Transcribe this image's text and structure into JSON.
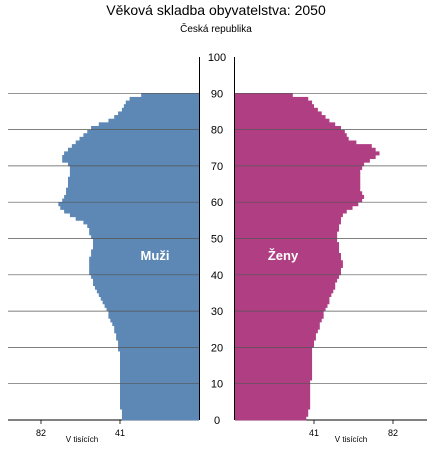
{
  "chart_data": {
    "type": "bar",
    "title": "Věková skladba obyvatelstva: 2050",
    "subtitle": "Česká republika",
    "xlabel": "V tisících",
    "x_ticks": [
      82,
      41
    ],
    "y_ticks": [
      0,
      10,
      20,
      30,
      40,
      50,
      60,
      70,
      80,
      90,
      100
    ],
    "ylim": [
      0,
      100
    ],
    "xlim": [
      0,
      82
    ],
    "colors": {
      "male": "#5d88b5",
      "female": "#b03e83"
    },
    "series": [
      {
        "name": "Muži",
        "ages": [
          0,
          1,
          2,
          3,
          4,
          5,
          6,
          7,
          8,
          9,
          10,
          11,
          12,
          13,
          14,
          15,
          16,
          17,
          18,
          19,
          20,
          21,
          22,
          23,
          24,
          25,
          26,
          27,
          28,
          29,
          30,
          31,
          32,
          33,
          34,
          35,
          36,
          37,
          38,
          39,
          40,
          41,
          42,
          43,
          44,
          45,
          46,
          47,
          48,
          49,
          50,
          51,
          52,
          53,
          54,
          55,
          56,
          57,
          58,
          59,
          60,
          61,
          62,
          63,
          64,
          65,
          66,
          67,
          68,
          69,
          70,
          71,
          72,
          73,
          74,
          75,
          76,
          77,
          78,
          79,
          80,
          81,
          82,
          83,
          84,
          85,
          86,
          87,
          88,
          89
        ],
        "values": [
          40,
          40,
          40,
          41,
          41,
          41,
          41,
          41,
          41,
          41,
          41,
          41,
          41,
          41,
          41,
          41,
          41,
          41,
          41,
          42,
          42,
          42,
          43,
          43,
          44,
          44,
          45,
          46,
          47,
          47,
          48,
          49,
          50,
          51,
          52,
          53,
          54,
          55,
          55,
          56,
          57,
          57,
          57,
          57,
          57,
          56,
          56,
          55,
          55,
          55,
          56,
          57,
          57,
          58,
          60,
          64,
          67,
          70,
          72,
          73,
          71,
          70,
          69,
          69,
          68,
          68,
          68,
          67,
          67,
          67,
          68,
          71,
          71,
          70,
          68,
          66,
          64,
          62,
          60,
          58,
          56,
          52,
          47,
          44,
          42,
          40,
          39,
          38,
          36,
          30
        ]
      },
      {
        "name": "Ženy",
        "ages": [
          0,
          1,
          2,
          3,
          4,
          5,
          6,
          7,
          8,
          9,
          10,
          11,
          12,
          13,
          14,
          15,
          16,
          17,
          18,
          19,
          20,
          21,
          22,
          23,
          24,
          25,
          26,
          27,
          28,
          29,
          30,
          31,
          32,
          33,
          34,
          35,
          36,
          37,
          38,
          39,
          40,
          41,
          42,
          43,
          44,
          45,
          46,
          47,
          48,
          49,
          50,
          51,
          52,
          53,
          54,
          55,
          56,
          57,
          58,
          59,
          60,
          61,
          62,
          63,
          64,
          65,
          66,
          67,
          68,
          69,
          70,
          71,
          72,
          73,
          74,
          75,
          76,
          77,
          78,
          79,
          80,
          81,
          82,
          83,
          84,
          85,
          86,
          87,
          88,
          89
        ],
        "values": [
          37,
          38,
          38,
          39,
          39,
          39,
          39,
          39,
          39,
          39,
          39,
          40,
          40,
          40,
          40,
          40,
          40,
          40,
          40,
          40,
          41,
          41,
          42,
          42,
          43,
          44,
          44,
          45,
          46,
          46,
          47,
          48,
          49,
          49,
          50,
          51,
          52,
          52,
          53,
          54,
          55,
          55,
          56,
          56,
          55,
          55,
          54,
          54,
          54,
          53,
          53,
          53,
          54,
          54,
          55,
          55,
          56,
          58,
          61,
          64,
          66,
          67,
          66,
          65,
          65,
          65,
          65,
          65,
          65,
          66,
          67,
          70,
          73,
          75,
          73,
          71,
          63,
          59,
          58,
          57,
          55,
          52,
          49,
          47,
          45,
          43,
          41,
          40,
          38,
          30
        ]
      }
    ],
    "bar_labels": [
      "Muži",
      "Ženy"
    ]
  }
}
